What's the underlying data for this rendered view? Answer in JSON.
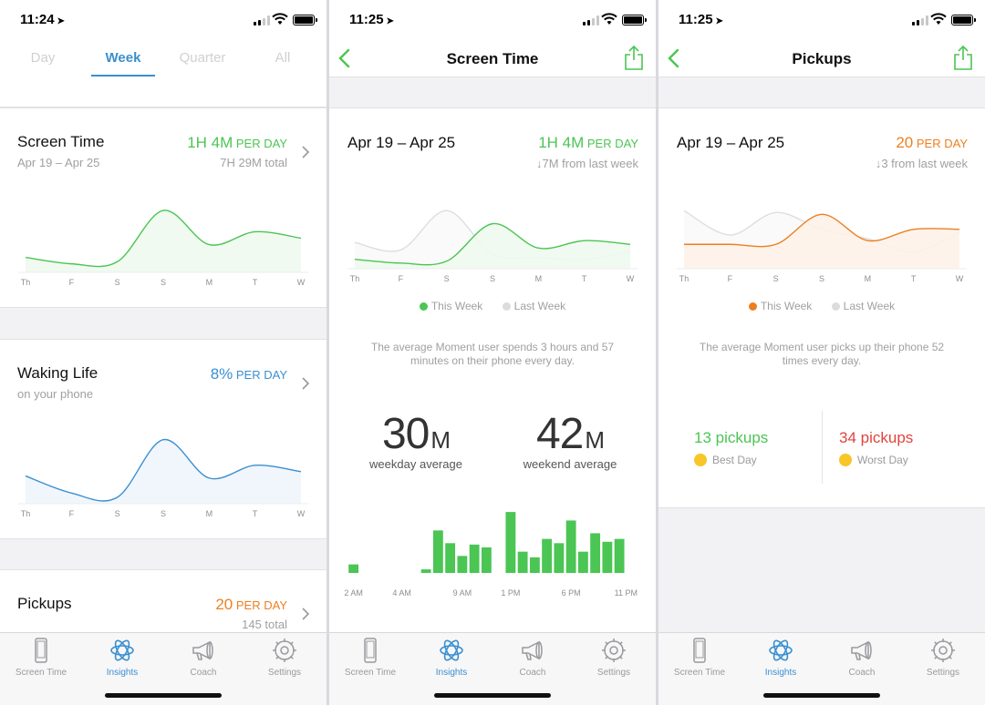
{
  "colors": {
    "green": "#4bc553",
    "blue": "#3a8fd0",
    "orange": "#ed7f20",
    "gray": "#d0d0d3"
  },
  "tabbar": {
    "items": [
      {
        "label": "Screen Time",
        "icon": "phone-icon"
      },
      {
        "label": "Insights",
        "icon": "insights-icon"
      },
      {
        "label": "Coach",
        "icon": "megaphone-icon"
      },
      {
        "label": "Settings",
        "icon": "gear-icon"
      }
    ]
  },
  "screen1": {
    "time": "11:24",
    "tabs": [
      "Day",
      "Week",
      "Quarter",
      "All"
    ],
    "active_tab": "Week",
    "cards": {
      "screen_time": {
        "title": "Screen Time",
        "sub": "Apr 19 – Apr 25",
        "value_num": "1H 4M",
        "value_unit": "PER DAY",
        "total": "7H 29M total"
      },
      "waking_life": {
        "title": "Waking Life",
        "sub": "on your phone",
        "value_num": "8%",
        "value_unit": "PER DAY"
      },
      "pickups": {
        "title": "Pickups",
        "value_num": "20",
        "value_unit": "PER DAY",
        "total": "145 total"
      }
    },
    "day_labels": [
      "Th",
      "F",
      "S",
      "S",
      "M",
      "T",
      "W"
    ]
  },
  "screen2": {
    "time": "11:25",
    "title": "Screen Time",
    "range": "Apr 19 – Apr 25",
    "value_num": "1H 4M",
    "value_unit": "PER DAY",
    "delta": "↓7M from last week",
    "legend_this": "This Week",
    "legend_last": "Last Week",
    "note": "The average Moment user spends 3 hours and 57 minutes on their phone every day.",
    "weekday_num": "30",
    "weekday_unit": "M",
    "weekday_label": "weekday average",
    "weekend_num": "42",
    "weekend_unit": "M",
    "weekend_label": "weekend average",
    "hour_labels": [
      "2 AM",
      "4 AM",
      "9 AM",
      "1 PM",
      "6 PM",
      "11 PM"
    ]
  },
  "screen3": {
    "time": "11:25",
    "title": "Pickups",
    "range": "Apr 19 – Apr 25",
    "value_num": "20",
    "value_unit": "PER DAY",
    "delta": "↓3 from last week",
    "legend_this": "This Week",
    "legend_last": "Last Week",
    "note": "The average Moment user picks up their phone 52 times every day.",
    "best_value": "13 pickups",
    "best_label": "Best Day",
    "worst_value": "34 pickups",
    "worst_label": "Worst Day"
  },
  "chart_data": [
    {
      "type": "area",
      "name": "screen-time-week",
      "categories": [
        "Th",
        "F",
        "S",
        "S",
        "M",
        "T",
        "W"
      ],
      "series": [
        {
          "values": [
            14,
            8,
            10,
            58,
            26,
            38,
            32
          ]
        }
      ],
      "ylim": [
        0,
        70
      ]
    },
    {
      "type": "area",
      "name": "waking-life-week",
      "categories": [
        "Th",
        "F",
        "S",
        "S",
        "M",
        "T",
        "W"
      ],
      "series": [
        {
          "values": [
            26,
            10,
            6,
            60,
            24,
            36,
            30
          ]
        }
      ],
      "ylim": [
        0,
        70
      ]
    },
    {
      "type": "area",
      "name": "screen-time-compare",
      "categories": [
        "Th",
        "F",
        "S",
        "S",
        "M",
        "T",
        "W"
      ],
      "series": [
        {
          "name": "This Week",
          "values": [
            10,
            6,
            8,
            48,
            22,
            30,
            26
          ]
        },
        {
          "name": "Last Week",
          "values": [
            28,
            20,
            62,
            16,
            12,
            10,
            18
          ]
        }
      ],
      "ylim": [
        0,
        70
      ]
    },
    {
      "type": "area",
      "name": "pickups-compare",
      "categories": [
        "Th",
        "F",
        "S",
        "S",
        "M",
        "T",
        "W"
      ],
      "series": [
        {
          "name": "This Week",
          "values": [
            26,
            26,
            26,
            58,
            30,
            42,
            42
          ]
        },
        {
          "name": "Last Week",
          "values": [
            62,
            36,
            60,
            42,
            32,
            18,
            38
          ]
        }
      ],
      "ylim": [
        0,
        70
      ]
    },
    {
      "type": "bar",
      "name": "hourly-screen-time",
      "categories": [
        "0",
        "1",
        "2",
        "3",
        "4",
        "5",
        "6",
        "7",
        "8",
        "9",
        "10",
        "11",
        "12",
        "13",
        "14",
        "15",
        "16",
        "17",
        "18",
        "19",
        "20",
        "21",
        "22",
        "23"
      ],
      "values": [
        12,
        0,
        0,
        0,
        0,
        0,
        5,
        60,
        42,
        24,
        40,
        36,
        0,
        86,
        30,
        22,
        48,
        42,
        74,
        30,
        56,
        44,
        48,
        0
      ],
      "ylim": [
        0,
        90
      ]
    }
  ]
}
